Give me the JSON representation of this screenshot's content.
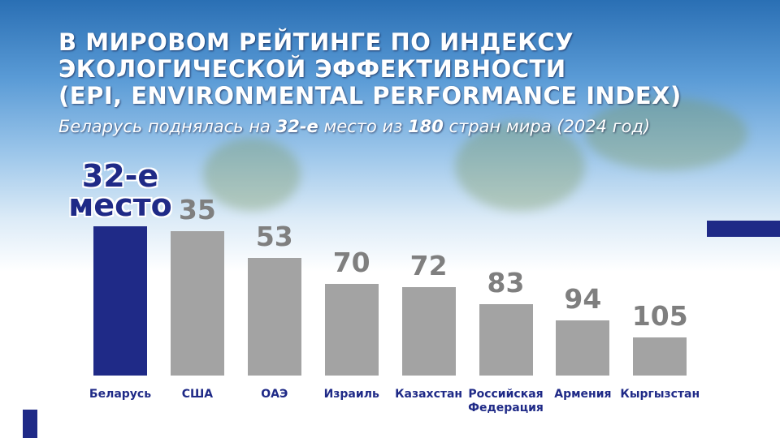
{
  "chart_data": {
    "type": "bar",
    "title": "В МИРОВОМ РЕЙТИНГЕ ПО ИНДЕКСУ\nЭКОЛОГИЧЕСКОЙ ЭФФЕКТИВНОСТИ\n(EPI, ENVIRONMENTAL PERFORMANCE INDEX)",
    "subtitle": [
      "Беларусь поднялась на ",
      "32-е",
      " место из ",
      "180",
      " стран мира (2024 год)"
    ],
    "categories": [
      "Беларусь",
      "США",
      "ОАЭ",
      "Израиль",
      "Казахстан",
      "Российская Федерация",
      "Армения",
      "Кыргызстан"
    ],
    "values": [
      32,
      35,
      53,
      70,
      72,
      83,
      94,
      105
    ],
    "value_labels": [
      "32-е\nместо",
      "35",
      "53",
      "70",
      "72",
      "83",
      "94",
      "105"
    ],
    "colors": [
      "#1f2a87",
      "#a3a3a3",
      "#a3a3a3",
      "#a3a3a3",
      "#a3a3a3",
      "#a3a3a3",
      "#a3a3a3",
      "#a3a3a3"
    ],
    "ylim": [
      130,
      0
    ]
  }
}
